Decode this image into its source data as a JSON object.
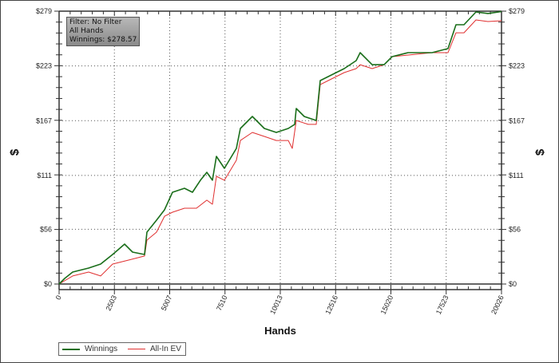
{
  "info_box": {
    "filter": "Filter: No Filter",
    "hands": "All Hands",
    "winnings": "Winnings: $278.57"
  },
  "chart_data": {
    "type": "line",
    "title": "",
    "xlabel": "Hands",
    "ylabel": "$",
    "xlim": [
      0,
      20026
    ],
    "ylim": [
      0,
      279
    ],
    "x_ticks": [
      0,
      2503,
      5007,
      7510,
      10013,
      12516,
      15020,
      17523,
      20026
    ],
    "x_tick_labels": [
      "0",
      "2503",
      "5007",
      "7510",
      "10013",
      "12516",
      "15020",
      "17523",
      "20026"
    ],
    "y_ticks": [
      0,
      56,
      111,
      167,
      223,
      279
    ],
    "y_tick_labels": [
      "$0",
      "$56",
      "$111",
      "$167",
      "$223",
      "$279"
    ],
    "grid": true,
    "legend_placement": "bottom-left",
    "series": [
      {
        "name": "Winnings",
        "color": "#1a6e1a",
        "points": [
          [
            0,
            0
          ],
          [
            253,
            5.7
          ],
          [
            615,
            12.2
          ],
          [
            1337,
            16.3
          ],
          [
            1880,
            20.4
          ],
          [
            2422,
            30.2
          ],
          [
            2964,
            40.8
          ],
          [
            3326,
            32.6
          ],
          [
            3868,
            30.2
          ],
          [
            3976,
            53
          ],
          [
            4410,
            65.3
          ],
          [
            4772,
            75.9
          ],
          [
            5133,
            93.8
          ],
          [
            5676,
            97.9
          ],
          [
            6037,
            93.8
          ],
          [
            6398,
            106.1
          ],
          [
            6688,
            114.2
          ],
          [
            6941,
            106.1
          ],
          [
            7122,
            130.5
          ],
          [
            7483,
            118.3
          ],
          [
            8025,
            138.7
          ],
          [
            8206,
            159.1
          ],
          [
            8748,
            171.3
          ],
          [
            9291,
            159.1
          ],
          [
            9833,
            155
          ],
          [
            10375,
            159.1
          ],
          [
            10664,
            163.2
          ],
          [
            10736,
            179.5
          ],
          [
            11098,
            171.3
          ],
          [
            11640,
            167.2
          ],
          [
            11821,
            208
          ],
          [
            12182,
            212.1
          ],
          [
            12905,
            220.3
          ],
          [
            13448,
            228.4
          ],
          [
            13628,
            236.6
          ],
          [
            14170,
            224.3
          ],
          [
            14713,
            224.3
          ],
          [
            15074,
            232.5
          ],
          [
            15797,
            236.6
          ],
          [
            16882,
            236.6
          ],
          [
            17605,
            240.7
          ],
          [
            17966,
            265.1
          ],
          [
            18328,
            265.1
          ],
          [
            18870,
            278.2
          ],
          [
            19412,
            276.6
          ],
          [
            20026,
            278.57
          ]
        ]
      },
      {
        "name": "All-In EV",
        "color": "#e03030",
        "points": [
          [
            0,
            0
          ],
          [
            615,
            8.2
          ],
          [
            1337,
            12.2
          ],
          [
            1880,
            8.2
          ],
          [
            2422,
            20.4
          ],
          [
            3145,
            24.5
          ],
          [
            3868,
            28.6
          ],
          [
            3976,
            44.9
          ],
          [
            4410,
            53
          ],
          [
            4772,
            69.3
          ],
          [
            5133,
            73.4
          ],
          [
            5676,
            77.5
          ],
          [
            6218,
            77.5
          ],
          [
            6688,
            85.7
          ],
          [
            6941,
            81.6
          ],
          [
            7122,
            110.1
          ],
          [
            7483,
            106.1
          ],
          [
            8025,
            126.5
          ],
          [
            8206,
            146.8
          ],
          [
            8748,
            155
          ],
          [
            9291,
            150.9
          ],
          [
            9833,
            146.8
          ],
          [
            10375,
            146.8
          ],
          [
            10556,
            138.7
          ],
          [
            10736,
            167.2
          ],
          [
            11279,
            163.2
          ],
          [
            11640,
            163.2
          ],
          [
            11821,
            203.9
          ],
          [
            12182,
            208
          ],
          [
            12905,
            216.2
          ],
          [
            13448,
            220.3
          ],
          [
            13628,
            224.3
          ],
          [
            14170,
            220.3
          ],
          [
            14713,
            224.3
          ],
          [
            15074,
            232.5
          ],
          [
            15797,
            234.1
          ],
          [
            16882,
            236.6
          ],
          [
            17605,
            236.6
          ],
          [
            17966,
            256.9
          ],
          [
            18328,
            256.9
          ],
          [
            18870,
            270
          ],
          [
            19412,
            268.4
          ],
          [
            20026,
            269.2
          ]
        ]
      }
    ]
  }
}
